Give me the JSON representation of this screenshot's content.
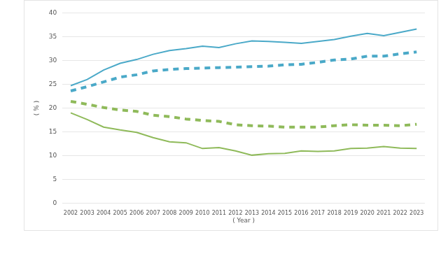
{
  "chart_data": {
    "type": "line",
    "x_label": "( Year )",
    "y_label": "( % )",
    "categories": [
      "2002",
      "2003",
      "2004",
      "2005",
      "2006",
      "2007",
      "2008",
      "2009",
      "2010",
      "2011",
      "2012",
      "2013",
      "2014",
      "2015",
      "2016",
      "2017",
      "2018",
      "2019",
      "2020",
      "2021",
      "2022",
      "2023"
    ],
    "series": [
      {
        "color": "#4aa9c8",
        "line_style": "solid",
        "values": [
          24.7,
          26.0,
          28.0,
          29.4,
          30.2,
          31.3,
          32.1,
          32.5,
          33.0,
          32.7,
          33.5,
          34.1,
          34.0,
          33.8,
          33.6,
          34.0,
          34.4,
          35.1,
          35.7,
          35.2,
          35.9,
          36.6
        ]
      },
      {
        "color": "#4aa9c8",
        "line_style": "dashed",
        "values": [
          23.6,
          24.5,
          25.5,
          26.5,
          27.0,
          27.8,
          28.1,
          28.3,
          28.4,
          28.5,
          28.6,
          28.7,
          28.8,
          29.1,
          29.2,
          29.6,
          30.1,
          30.3,
          30.9,
          30.9,
          31.4,
          31.8
        ]
      },
      {
        "color": "#8fba5a",
        "line_style": "dashed",
        "values": [
          21.4,
          20.8,
          20.1,
          19.6,
          19.3,
          18.5,
          18.2,
          17.7,
          17.4,
          17.2,
          16.5,
          16.3,
          16.2,
          16.0,
          16.0,
          16.0,
          16.3,
          16.5,
          16.4,
          16.4,
          16.3,
          16.6
        ]
      },
      {
        "color": "#8fba5a",
        "line_style": "solid",
        "values": [
          19.0,
          17.6,
          16.0,
          15.4,
          14.9,
          13.8,
          12.9,
          12.7,
          11.5,
          11.7,
          11.0,
          10.1,
          10.4,
          10.5,
          11.0,
          10.9,
          11.0,
          11.5,
          11.6,
          11.9,
          11.6,
          11.5
        ]
      }
    ],
    "ylim": [
      0,
      40
    ],
    "yticks": [
      0,
      5,
      10,
      15,
      20,
      25,
      30,
      35,
      40
    ],
    "grid": true
  }
}
